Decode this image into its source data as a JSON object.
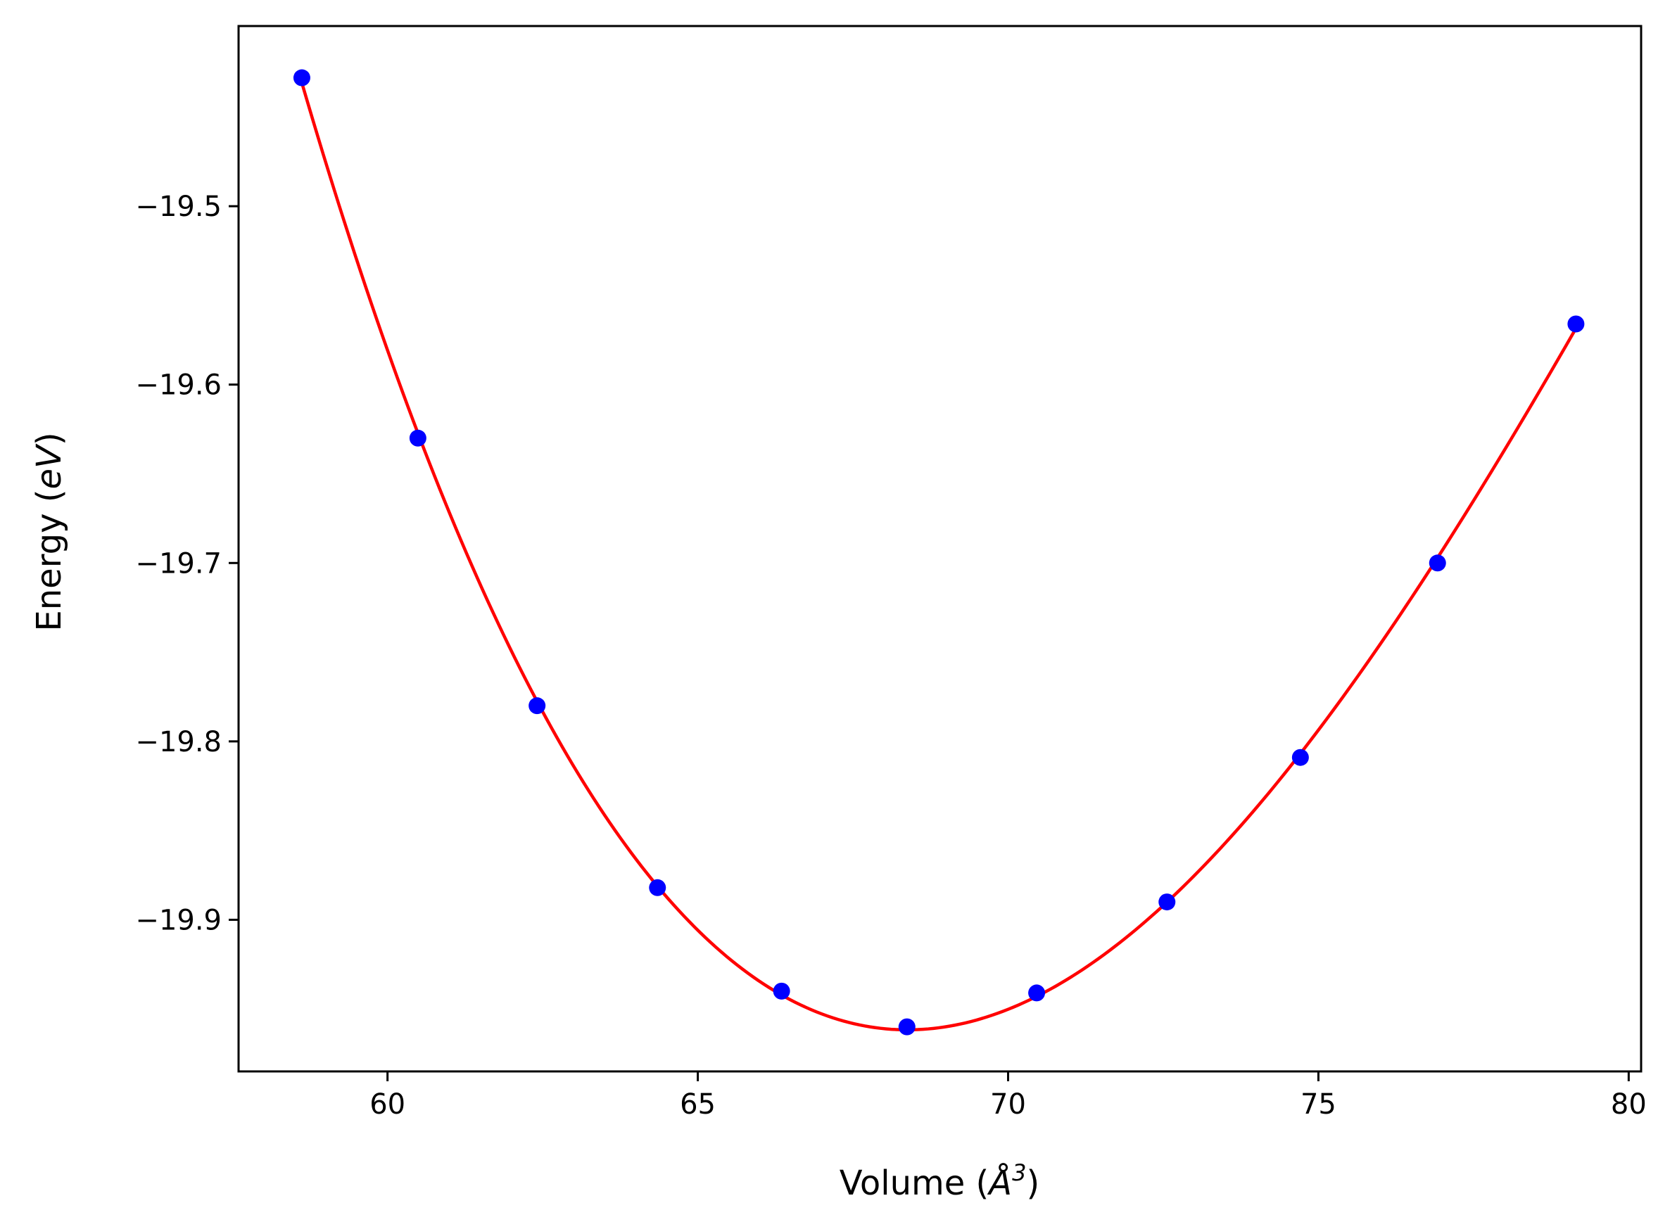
{
  "chart_data": {
    "type": "scatter",
    "xlabel": "Volume (Å³)",
    "xlabel_main": "Volume (",
    "xlabel_unit": "Å",
    "xlabel_exp": "3",
    "xlabel_close": ")",
    "ylabel": "Energy (eV)",
    "ylabel_main": "Energy (",
    "ylabel_unit": "eV",
    "ylabel_close": ")",
    "xlim": [
      57.6,
      80.2
    ],
    "ylim": [
      -19.985,
      -19.399
    ],
    "x_ticks": [
      60,
      65,
      70,
      75,
      80
    ],
    "x_tick_labels": [
      "60",
      "65",
      "70",
      "75",
      "80"
    ],
    "y_ticks": [
      -19.5,
      -19.6,
      -19.7,
      -19.8,
      -19.9
    ],
    "y_tick_labels": [
      "−19.5",
      "−19.6",
      "−19.7",
      "−19.8",
      "−19.9"
    ],
    "grid": false,
    "series": [
      {
        "kind": "points",
        "color": "#0000ff",
        "x": [
          58.62,
          60.49,
          62.41,
          64.35,
          66.35,
          68.37,
          70.46,
          72.56,
          74.71,
          76.92,
          79.15
        ],
        "y": [
          -19.428,
          -19.63,
          -19.78,
          -19.882,
          -19.94,
          -19.96,
          -19.941,
          -19.89,
          -19.809,
          -19.7,
          -19.566
        ]
      },
      {
        "kind": "fit-line",
        "color": "#ff0000"
      }
    ]
  }
}
